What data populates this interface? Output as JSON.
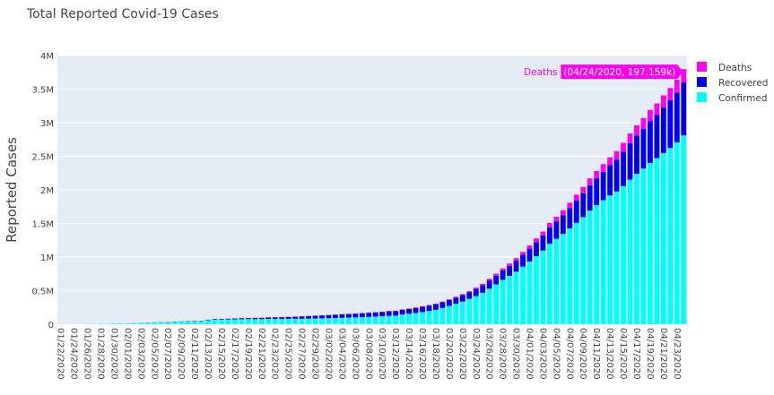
{
  "chart_data": {
    "type": "bar",
    "stacked": true,
    "title": "Total Reported Covid-19 Cases",
    "xlabel": "",
    "ylabel": "Reported Cases",
    "ylim": [
      0,
      4000000
    ],
    "yticks": [
      0,
      500000,
      1000000,
      1500000,
      2000000,
      2500000,
      3000000,
      3500000,
      4000000
    ],
    "ytick_labels": [
      "0",
      "0.5M",
      "1M",
      "1.5M",
      "2M",
      "2.5M",
      "3M",
      "3.5M",
      "4M"
    ],
    "xtick_labels": [
      "01/22/2020",
      "01/24/2020",
      "01/26/2020",
      "01/28/2020",
      "01/30/2020",
      "02/01/2020",
      "02/03/2020",
      "02/05/2020",
      "02/07/2020",
      "02/09/2020",
      "02/11/2020",
      "02/13/2020",
      "02/15/2020",
      "02/17/2020",
      "02/19/2020",
      "02/21/2020",
      "02/23/2020",
      "02/25/2020",
      "02/27/2020",
      "02/29/2020",
      "03/02/2020",
      "03/04/2020",
      "03/06/2020",
      "03/08/2020",
      "03/10/2020",
      "03/12/2020",
      "03/14/2020",
      "03/16/2020",
      "03/18/2020",
      "03/20/2020",
      "03/22/2020",
      "03/24/2020",
      "03/26/2020",
      "03/28/2020",
      "03/30/2020",
      "04/01/2020",
      "04/03/2020",
      "04/05/2020",
      "04/07/2020",
      "04/09/2020",
      "04/11/2020",
      "04/13/2020",
      "04/15/2020",
      "04/17/2020",
      "04/19/2020",
      "04/21/2020",
      "04/23/2020"
    ],
    "categories": [
      "01/22/2020",
      "01/23/2020",
      "01/24/2020",
      "01/25/2020",
      "01/26/2020",
      "01/27/2020",
      "01/28/2020",
      "01/29/2020",
      "01/30/2020",
      "01/31/2020",
      "02/01/2020",
      "02/02/2020",
      "02/03/2020",
      "02/04/2020",
      "02/05/2020",
      "02/06/2020",
      "02/07/2020",
      "02/08/2020",
      "02/09/2020",
      "02/10/2020",
      "02/11/2020",
      "02/12/2020",
      "02/13/2020",
      "02/14/2020",
      "02/15/2020",
      "02/16/2020",
      "02/17/2020",
      "02/18/2020",
      "02/19/2020",
      "02/20/2020",
      "02/21/2020",
      "02/22/2020",
      "02/23/2020",
      "02/24/2020",
      "02/25/2020",
      "02/26/2020",
      "02/27/2020",
      "02/28/2020",
      "02/29/2020",
      "03/01/2020",
      "03/02/2020",
      "03/03/2020",
      "03/04/2020",
      "03/05/2020",
      "03/06/2020",
      "03/07/2020",
      "03/08/2020",
      "03/09/2020",
      "03/10/2020",
      "03/11/2020",
      "03/12/2020",
      "03/13/2020",
      "03/14/2020",
      "03/15/2020",
      "03/16/2020",
      "03/17/2020",
      "03/18/2020",
      "03/19/2020",
      "03/20/2020",
      "03/21/2020",
      "03/22/2020",
      "03/23/2020",
      "03/24/2020",
      "03/25/2020",
      "03/26/2020",
      "03/27/2020",
      "03/28/2020",
      "03/29/2020",
      "03/30/2020",
      "03/31/2020",
      "04/01/2020",
      "04/02/2020",
      "04/03/2020",
      "04/04/2020",
      "04/05/2020",
      "04/06/2020",
      "04/07/2020",
      "04/08/2020",
      "04/09/2020",
      "04/10/2020",
      "04/11/2020",
      "04/12/2020",
      "04/13/2020",
      "04/14/2020",
      "04/15/2020",
      "04/16/2020",
      "04/17/2020",
      "04/18/2020",
      "04/19/2020",
      "04/20/2020",
      "04/21/2020",
      "04/22/2020",
      "04/23/2020",
      "04/24/2020"
    ],
    "series": [
      {
        "name": "Confirmed",
        "color": "#00ffff",
        "values": [
          555,
          654,
          941,
          1434,
          2118,
          2927,
          5578,
          6166,
          8234,
          9927,
          12038,
          16787,
          19881,
          23892,
          27635,
          30794,
          34391,
          37120,
          40150,
          42762,
          44802,
          45221,
          60368,
          66885,
          69030,
          71224,
          73258,
          75136,
          75639,
          76197,
          76819,
          78572,
          78958,
          79561,
          80406,
          81388,
          82746,
          84112,
          86011,
          88369,
          90306,
          92840,
          95120,
          97886,
          101801,
          105847,
          109821,
          113590,
          118620,
          125875,
          128352,
          145205,
          156101,
          167454,
          181574,
          197102,
          214821,
          242570,
          272208,
          304507,
          336953,
          378231,
          418041,
          467653,
          529591,
          593291,
          660706,
          720117,
          782365,
          857487,
          932605,
          1013157,
          1095917,
          1197405,
          1272115,
          1345101,
          1426096,
          1511104,
          1595350,
          1691719,
          1771514,
          1846680,
          1917320,
          1976191,
          2056055,
          2152437,
          2240190,
          2317759,
          2401379,
          2472259,
          2549294,
          2623415,
          2708885,
          2811193
        ]
      },
      {
        "name": "Recovered",
        "color": "#0000ee",
        "values": [
          28,
          30,
          36,
          39,
          52,
          61,
          107,
          126,
          143,
          222,
          284,
          472,
          623,
          852,
          1124,
          1487,
          2011,
          2616,
          3244,
          3946,
          4683,
          5150,
          6295,
          8058,
          9395,
          10865,
          12583,
          14352,
          16121,
          18177,
          18890,
          22886,
          23394,
          25227,
          27905,
          30384,
          33277,
          36711,
          39782,
          42716,
          45602,
          48228,
          51170,
          53796,
          55865,
          58358,
          60694,
          62494,
          64404,
          67003,
          68324,
          70251,
          72624,
          76034,
          78088,
          80840,
          83207,
          84854,
          87256,
          91675,
          97243,
          98361,
          107997,
          113749,
          122203,
          130919,
          139415,
          149082,
          164566,
          178034,
          193177,
          210263,
          225796,
          246152,
          260012,
          276515,
          300054,
          328661,
          353975,
          376096,
          402110,
          421722,
          448655,
          474261,
          510211,
          542107,
          567286,
          591830,
          623903,
          645738,
          680400,
          710263,
          739273,
          789380
        ]
      },
      {
        "name": "Deaths",
        "color": "#ff00ee",
        "values": [
          17,
          18,
          26,
          42,
          56,
          82,
          131,
          133,
          171,
          213,
          259,
          362,
          426,
          492,
          564,
          634,
          719,
          806,
          906,
          1013,
          1113,
          1118,
          1371,
          1523,
          1666,
          1770,
          1868,
          2007,
          2122,
          2247,
          2251,
          2458,
          2469,
          2629,
          2708,
          2770,
          2814,
          2872,
          2941,
          2996,
          3085,
          3160,
          3254,
          3348,
          3460,
          3558,
          3803,
          3996,
          4262,
          4615,
          4720,
          5404,
          5819,
          6440,
          7126,
          7905,
          8733,
          9867,
          11299,
          12973,
          14623,
          16497,
          18615,
          21181,
          23970,
          27198,
          30652,
          33925,
          37582,
          42107,
          47180,
          53191,
          58787,
          64606,
          69374,
          74565,
          81865,
          88338,
          95455,
          102525,
          108503,
          114091,
          119482,
          125983,
          134177,
          143800,
          153822,
          159510,
          165044,
          169986,
          176583,
          183066,
          190858,
          197159
        ]
      }
    ],
    "legend": {
      "position": "right",
      "order": [
        "Deaths",
        "Recovered",
        "Confirmed"
      ]
    },
    "hover": {
      "series": "Deaths",
      "label": "(04/24/2020, 197.159k)"
    },
    "grid": true,
    "plot_bgcolor": "#e5ecf6"
  }
}
